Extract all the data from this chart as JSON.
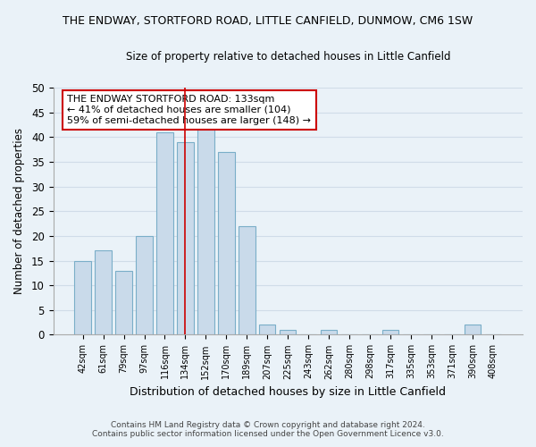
{
  "title": "THE ENDWAY, STORTFORD ROAD, LITTLE CANFIELD, DUNMOW, CM6 1SW",
  "subtitle": "Size of property relative to detached houses in Little Canfield",
  "xlabel": "Distribution of detached houses by size in Little Canfield",
  "ylabel": "Number of detached properties",
  "bar_labels": [
    "42sqm",
    "61sqm",
    "79sqm",
    "97sqm",
    "116sqm",
    "134sqm",
    "152sqm",
    "170sqm",
    "189sqm",
    "207sqm",
    "225sqm",
    "243sqm",
    "262sqm",
    "280sqm",
    "298sqm",
    "317sqm",
    "335sqm",
    "353sqm",
    "371sqm",
    "390sqm",
    "408sqm"
  ],
  "bar_values": [
    15,
    17,
    13,
    20,
    41,
    39,
    42,
    37,
    22,
    2,
    1,
    0,
    1,
    0,
    0,
    1,
    0,
    0,
    0,
    2,
    0
  ],
  "bar_color": "#c9daea",
  "bar_edge_color": "#7aaec8",
  "grid_color": "#d0dce8",
  "background_color": "#eaf2f8",
  "vline_x_index": 5,
  "vline_color": "#cc0000",
  "annotation_title": "THE ENDWAY STORTFORD ROAD: 133sqm",
  "annotation_line1": "← 41% of detached houses are smaller (104)",
  "annotation_line2": "59% of semi-detached houses are larger (148) →",
  "annotation_box_color": "#ffffff",
  "annotation_border_color": "#cc0000",
  "ylim": [
    0,
    50
  ],
  "yticks": [
    0,
    5,
    10,
    15,
    20,
    25,
    30,
    35,
    40,
    45,
    50
  ],
  "footnote1": "Contains HM Land Registry data © Crown copyright and database right 2024.",
  "footnote2": "Contains public sector information licensed under the Open Government Licence v3.0."
}
